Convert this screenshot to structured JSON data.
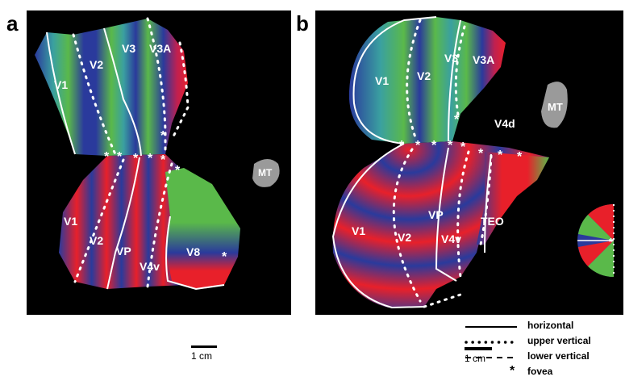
{
  "panels": {
    "a": {
      "label": "a",
      "areas": {
        "v1_upper": "V1",
        "v2_upper": "V2",
        "v3": "V3",
        "v3a": "V3A",
        "v1_lower": "V1",
        "v2_lower": "V2",
        "vp": "VP",
        "v4v": "V4v",
        "v8": "V8",
        "mt": "MT"
      }
    },
    "b": {
      "label": "b",
      "areas": {
        "v1_upper": "V1",
        "v2_upper": "V2",
        "v3": "V3",
        "v3a": "V3A",
        "v4d": "V4d",
        "mt": "MT",
        "v1_lower": "V1",
        "v2_lower": "V2",
        "vp": "VP",
        "v4v": "V4v",
        "teo": "TEO"
      }
    }
  },
  "scale_bars": {
    "a": "1 cm",
    "b": "1 cm"
  },
  "legend": [
    {
      "style": "solid",
      "label": "horizontal"
    },
    {
      "style": "dotted",
      "label": "upper vertical"
    },
    {
      "style": "dashed",
      "label": "lower vertical"
    },
    {
      "style": "star",
      "symbol": "*",
      "label": "fovea"
    }
  ],
  "colors": {
    "red": "#e8202a",
    "green": "#5ab94a",
    "blue": "#2a3a9c",
    "mt": "#9a9a9a"
  }
}
